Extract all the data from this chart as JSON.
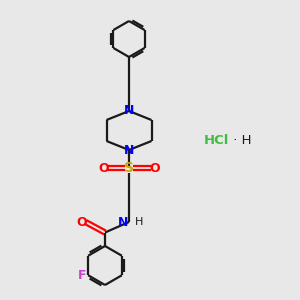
{
  "background_color": "#e8e8e8",
  "bond_color": "#1a1a1a",
  "N_color": "#0000ff",
  "O_color": "#ff0000",
  "S_color": "#ccaa00",
  "F_color": "#cc44cc",
  "Cl_color": "#44bb44",
  "lw": 1.6,
  "figsize": [
    3.0,
    3.0
  ],
  "dpi": 100,
  "xlim": [
    0,
    10
  ],
  "ylim": [
    0,
    10
  ],
  "HCl_x": 6.8,
  "HCl_y": 5.3
}
